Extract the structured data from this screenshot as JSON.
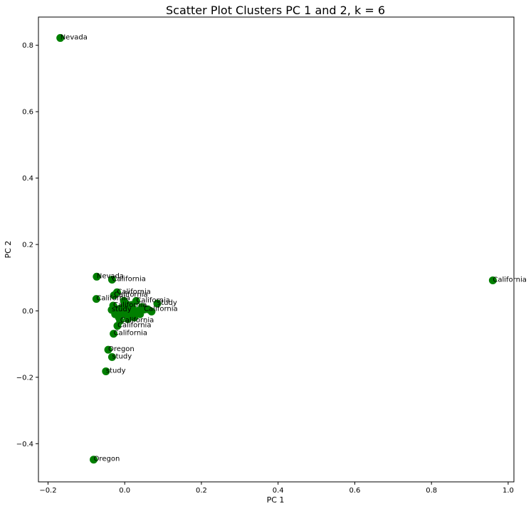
{
  "chart_data": {
    "type": "scatter",
    "title": "Scatter Plot Clusters PC 1 and 2, k = 6",
    "xlabel": "PC 1",
    "ylabel": "PC 2",
    "xlim": [
      -0.225,
      1.015
    ],
    "ylim": [
      -0.515,
      0.885
    ],
    "xticks": [
      -0.2,
      0.0,
      0.2,
      0.4,
      0.6,
      0.8,
      1.0
    ],
    "xtick_labels": [
      "−0.2",
      "0.0",
      "0.2",
      "0.4",
      "0.6",
      "0.8",
      "1.0"
    ],
    "yticks": [
      -0.4,
      -0.2,
      0.0,
      0.2,
      0.4,
      0.6,
      0.8
    ],
    "ytick_labels": [
      "−0.4",
      "−0.2",
      "0.0",
      "0.2",
      "0.4",
      "0.6",
      "0.8"
    ],
    "grid": false,
    "marker_color": "#007f00",
    "points": [
      {
        "x": -0.168,
        "y": 0.822,
        "label": "Nevada"
      },
      {
        "x": 0.96,
        "y": 0.092,
        "label": "California"
      },
      {
        "x": -0.073,
        "y": 0.103,
        "label": "Nevada"
      },
      {
        "x": -0.033,
        "y": 0.094,
        "label": "California"
      },
      {
        "x": -0.02,
        "y": 0.056,
        "label": "California"
      },
      {
        "x": -0.028,
        "y": 0.047,
        "label": "California"
      },
      {
        "x": -0.074,
        "y": 0.036,
        "label": "California"
      },
      {
        "x": 0.03,
        "y": 0.03,
        "label": "California"
      },
      {
        "x": 0.085,
        "y": 0.022,
        "label": "study"
      },
      {
        "x": -0.03,
        "y": 0.016,
        "label": "California"
      },
      {
        "x": -0.034,
        "y": 0.003,
        "label": "study"
      },
      {
        "x": 0.05,
        "y": 0.004,
        "label": "California"
      },
      {
        "x": -0.012,
        "y": -0.03,
        "label": "California"
      },
      {
        "x": -0.019,
        "y": -0.045,
        "label": "California"
      },
      {
        "x": -0.029,
        "y": -0.069,
        "label": "California"
      },
      {
        "x": -0.043,
        "y": -0.117,
        "label": "Oregon"
      },
      {
        "x": -0.033,
        "y": -0.139,
        "label": "study"
      },
      {
        "x": -0.049,
        "y": -0.182,
        "label": "study"
      },
      {
        "x": -0.081,
        "y": -0.448,
        "label": "Oregon"
      },
      {
        "x": -0.01,
        "y": 0.008,
        "label": ""
      },
      {
        "x": 0.0,
        "y": 0.0,
        "label": ""
      },
      {
        "x": 0.01,
        "y": -0.005,
        "label": ""
      },
      {
        "x": 0.02,
        "y": 0.01,
        "label": ""
      },
      {
        "x": 0.015,
        "y": -0.015,
        "label": ""
      },
      {
        "x": 0.035,
        "y": 0.0,
        "label": ""
      },
      {
        "x": 0.04,
        "y": -0.01,
        "label": ""
      },
      {
        "x": 0.06,
        "y": 0.005,
        "label": ""
      },
      {
        "x": 0.005,
        "y": 0.02,
        "label": ""
      },
      {
        "x": -0.005,
        "y": -0.01,
        "label": ""
      },
      {
        "x": -0.015,
        "y": -0.02,
        "label": ""
      },
      {
        "x": 0.025,
        "y": -0.02,
        "label": ""
      },
      {
        "x": 0.0,
        "y": 0.012,
        "label": ""
      },
      {
        "x": -0.02,
        "y": 0.005,
        "label": ""
      },
      {
        "x": 0.012,
        "y": 0.003,
        "label": ""
      },
      {
        "x": 0.045,
        "y": 0.012,
        "label": ""
      },
      {
        "x": 0.028,
        "y": -0.004,
        "label": ""
      },
      {
        "x": -0.008,
        "y": -0.002,
        "label": ""
      },
      {
        "x": 0.018,
        "y": 0.018,
        "label": ""
      },
      {
        "x": 0.07,
        "y": -0.002,
        "label": ""
      },
      {
        "x": -0.002,
        "y": 0.03,
        "label": ""
      },
      {
        "x": -0.025,
        "y": -0.01,
        "label": ""
      },
      {
        "x": 0.008,
        "y": -0.025,
        "label": ""
      }
    ]
  }
}
